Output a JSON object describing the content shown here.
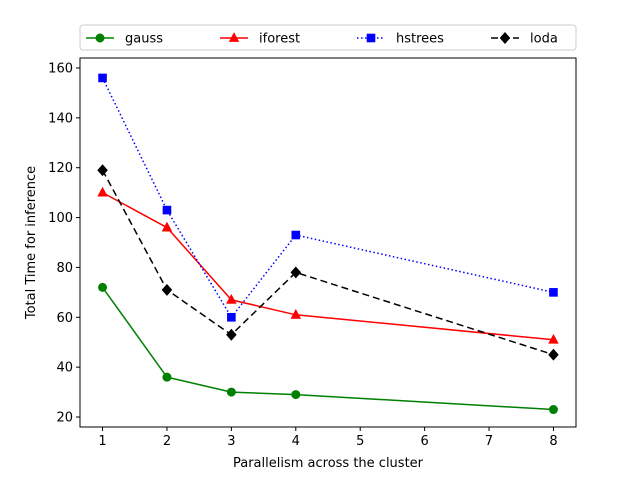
{
  "chart_data": {
    "type": "line",
    "xlabel": "Parallelism across the cluster",
    "ylabel": "Total Time for inference",
    "xlim": [
      0.65,
      8.35
    ],
    "ylim": [
      16,
      164
    ],
    "xticks": [
      1,
      2,
      3,
      4,
      5,
      6,
      7,
      8
    ],
    "yticks": [
      20,
      40,
      60,
      80,
      100,
      120,
      140,
      160
    ],
    "x": [
      1,
      2,
      3,
      4,
      8
    ],
    "legend_position": "top",
    "series": [
      {
        "name": "gauss",
        "color": "#008000",
        "marker": "circle",
        "linestyle": "solid",
        "values": [
          72,
          36,
          30,
          29,
          23
        ]
      },
      {
        "name": "iforest",
        "color": "#ff0000",
        "marker": "triangle",
        "linestyle": "solid",
        "values": [
          110,
          96,
          67,
          61,
          51
        ]
      },
      {
        "name": "hstrees",
        "color": "#0000ff",
        "marker": "square",
        "linestyle": "dotted",
        "values": [
          156,
          103,
          60,
          93,
          70
        ]
      },
      {
        "name": "loda",
        "color": "#000000",
        "marker": "diamond",
        "linestyle": "dashed",
        "values": [
          119,
          71,
          53,
          78,
          45
        ]
      }
    ]
  }
}
